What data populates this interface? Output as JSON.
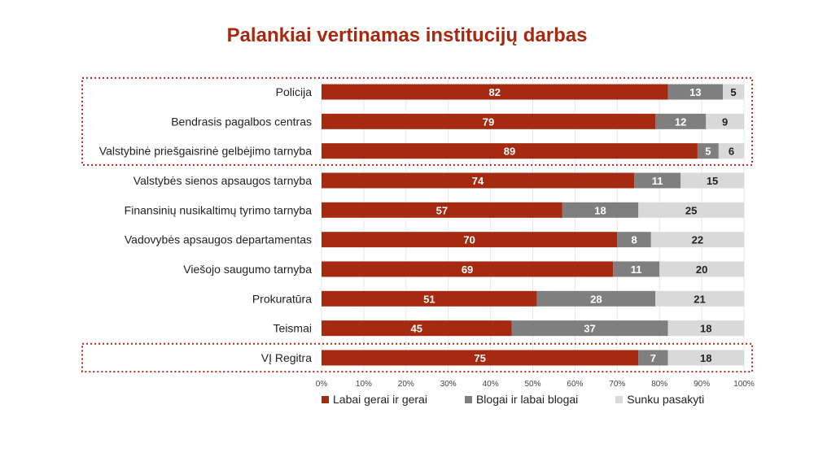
{
  "chart_data": {
    "type": "bar",
    "orientation": "horizontal",
    "stacked": true,
    "title": "Palankiai vertinamas institucijų darbas",
    "categories": [
      "Policija",
      "Bendrasis pagalbos centras",
      "Valstybinė priešgaisrinė gelbėjimo tarnyba",
      "Valstybės sienos apsaugos tarnyba",
      "Finansinių nusikaltimų tyrimo tarnyba",
      "Vadovybės apsaugos departamentas",
      "Viešojo saugumo tarnyba",
      "Prokuratūra",
      "Teismai",
      "VĮ Regitra"
    ],
    "series": [
      {
        "name": "Labai gerai ir gerai",
        "color": "#a52a11",
        "values": [
          82,
          79,
          89,
          74,
          57,
          70,
          69,
          51,
          45,
          75
        ]
      },
      {
        "name": "Blogai ir labai blogai",
        "color": "#7f7f7f",
        "values": [
          13,
          12,
          5,
          11,
          18,
          8,
          11,
          28,
          37,
          7
        ]
      },
      {
        "name": "Sunku pasakyti",
        "color": "#d9d9d9",
        "values": [
          5,
          9,
          6,
          15,
          25,
          22,
          20,
          21,
          18,
          18
        ]
      }
    ],
    "xticks": [
      "0%",
      "10%",
      "20%",
      "30%",
      "40%",
      "50%",
      "60%",
      "70%",
      "80%",
      "90%",
      "100%"
    ],
    "xlim": [
      0,
      100
    ],
    "grid": true,
    "legend_position": "bottom",
    "highlight_groups": [
      [
        0,
        2
      ],
      [
        9,
        9
      ]
    ]
  }
}
